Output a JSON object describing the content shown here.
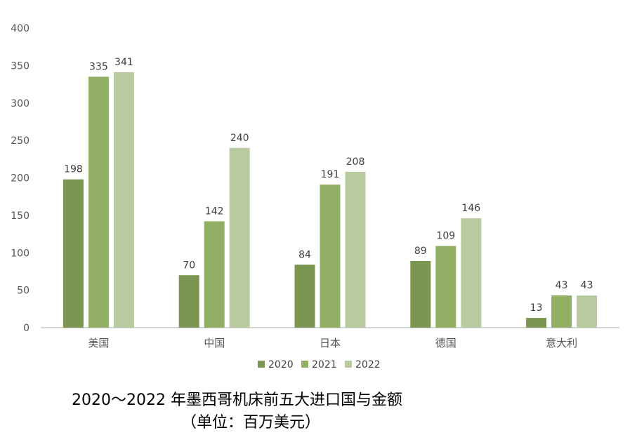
{
  "chart_data": {
    "type": "bar",
    "categories": [
      "美国",
      "中国",
      "日本",
      "德国",
      "意大利"
    ],
    "series": [
      {
        "name": "2020",
        "values": [
          198,
          70,
          84,
          89,
          13
        ],
        "color": "#7a9650"
      },
      {
        "name": "2021",
        "values": [
          335,
          142,
          191,
          109,
          43
        ],
        "color": "#92b065"
      },
      {
        "name": "2022",
        "values": [
          341,
          240,
          208,
          146,
          43
        ],
        "color": "#b8cba0"
      }
    ],
    "ylim": [
      0,
      400
    ],
    "yticks": [
      0,
      50,
      100,
      150,
      200,
      250,
      300,
      350,
      400
    ],
    "grid": false,
    "legend_position": "bottom",
    "data_labels": true
  },
  "caption": {
    "line1": "2020～2022 年墨西哥机床前五大进口国与金额",
    "line2": "（单位：百万美元）"
  },
  "colors": {
    "axis": "#c8c8c8",
    "tick_text": "#555555",
    "label_text": "#404040"
  }
}
